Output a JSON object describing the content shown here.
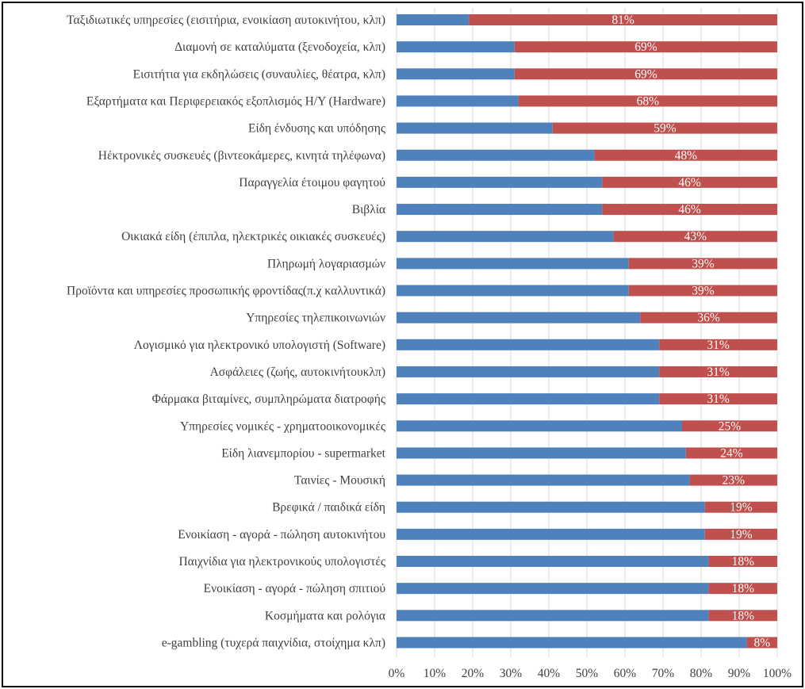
{
  "chart_data": {
    "type": "bar",
    "orientation": "horizontal",
    "stacked": "percent",
    "title": "",
    "xlabel": "",
    "ylabel": "",
    "xlim": [
      0,
      100
    ],
    "grid": true,
    "legend": "none",
    "ticks": [
      "0%",
      "10%",
      "20%",
      "30%",
      "40%",
      "50%",
      "60%",
      "70%",
      "80%",
      "90%",
      "100%"
    ],
    "categories": [
      "Ταξιδιωτικές υπηρεσίες (εισιτήρια, ενοικίαση αυτοκινήτου, κλπ)",
      "Διαμονή σε καταλύματα (ξενοδοχεία, κλπ)",
      "Εισιτήτια για εκδηλώσεις (συναυλίες, θέατρα, κλπ)",
      "Εξαρτήματα και Περιφερειακός εξοπλισμός Η/Υ (Hardware)",
      "Είδη ένδυσης και υπόδησης",
      "Ηέκτρονικές συσκευές (βιντεοκάμερες, κινητά τηλέφωνα)",
      "Παραγγελία έτοιμου φαγητού",
      "Βιβλία",
      "Οικιακά είδη (έπιπλα, ηλεκτρικές οικιακές συσκευές)",
      "Πληρωμή λογαριασμών",
      "Προϊόντα και υπηρεσίες προσωπικής φροντίδας(π.χ καλλυντικά)",
      "Υπηρεσίες τηλεπικοινωνιών",
      "Λογισμικό για ηλεκτρονικό υπολογιστή (Software)",
      "Ασφάλειες (ζωής, αυτοκινήτουκλπ)",
      "Φάρμακα βιταμίνες, συμπληρώματα διατροφής",
      "Υπηρεσίες νομικές - χρηματοοικονομικές",
      "Είδη λιανεμπορίου - supermarket",
      "Ταινίες - Μουσική",
      "Βρεφικά / παιδικά είδη",
      "Ενοικίαση - αγορά - πώληση αυτοκινήτου",
      "Παιχνίδια για ηλεκτρονικούς υπολογιστές",
      "Ενοικίαση - αγορά - πώληση σπιτιού",
      "Κοσμήματα και ρολόγια",
      "e-gambling (τυχερά παιχνίδια, στοίχημα κλπ)"
    ],
    "series": [
      {
        "name": "blue",
        "color": "#4f81bd",
        "values": [
          19,
          31,
          31,
          32,
          41,
          52,
          54,
          54,
          57,
          61,
          61,
          64,
          69,
          69,
          69,
          75,
          76,
          77,
          81,
          81,
          82,
          82,
          82,
          92
        ]
      },
      {
        "name": "red",
        "color": "#c0504d",
        "values": [
          81,
          69,
          69,
          68,
          59,
          48,
          46,
          46,
          43,
          39,
          39,
          36,
          31,
          31,
          31,
          25,
          24,
          23,
          19,
          19,
          18,
          18,
          18,
          8
        ],
        "labels": [
          "81%",
          "69%",
          "69%",
          "68%",
          "59%",
          "48%",
          "46%",
          "46%",
          "43%",
          "39%",
          "39%",
          "36%",
          "31%",
          "31%",
          "31%",
          "25%",
          "24%",
          "23%",
          "19%",
          "19%",
          "18%",
          "18%",
          "18%",
          "8%"
        ]
      }
    ]
  }
}
